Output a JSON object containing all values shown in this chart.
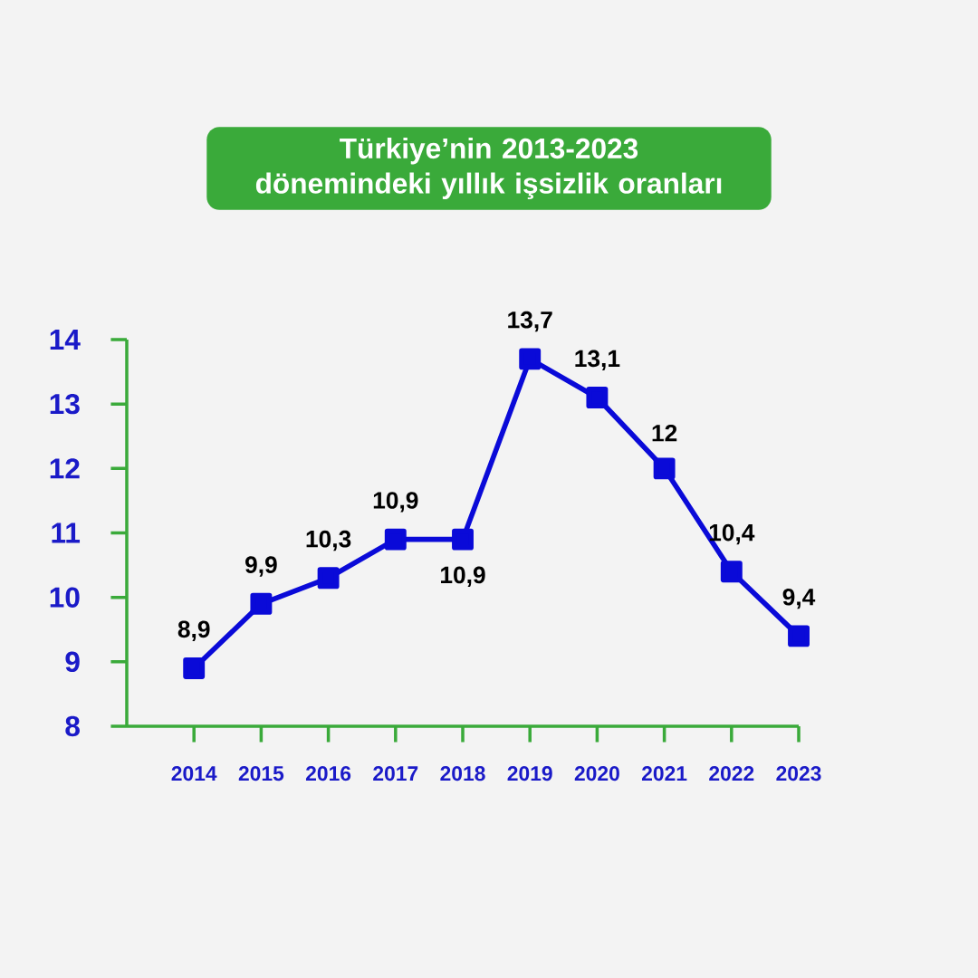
{
  "chart_data": {
    "type": "line",
    "title": "Türkiye’nin 2013-2023 dönemindeki yıllık işsizlik oranları",
    "categories": [
      "2014",
      "2015",
      "2016",
      "2017",
      "2018",
      "2019",
      "2020",
      "2021",
      "2022",
      "2023"
    ],
    "series": [
      {
        "color": "#0a0ad8",
        "values": [
          8.9,
          9.9,
          10.3,
          10.9,
          10.9,
          13.7,
          13.1,
          12,
          10.4,
          9.4
        ],
        "value_labels": [
          "8,9",
          "9,9",
          "10,3",
          "10,9",
          "10,9",
          "13,7",
          "13,1",
          "12",
          "10,4",
          "9,4"
        ]
      }
    ],
    "ylim": [
      8,
      14
    ],
    "yticks": [
      8,
      9,
      10,
      11,
      12,
      13,
      14
    ],
    "marker": "square",
    "line_style": "solid"
  }
}
